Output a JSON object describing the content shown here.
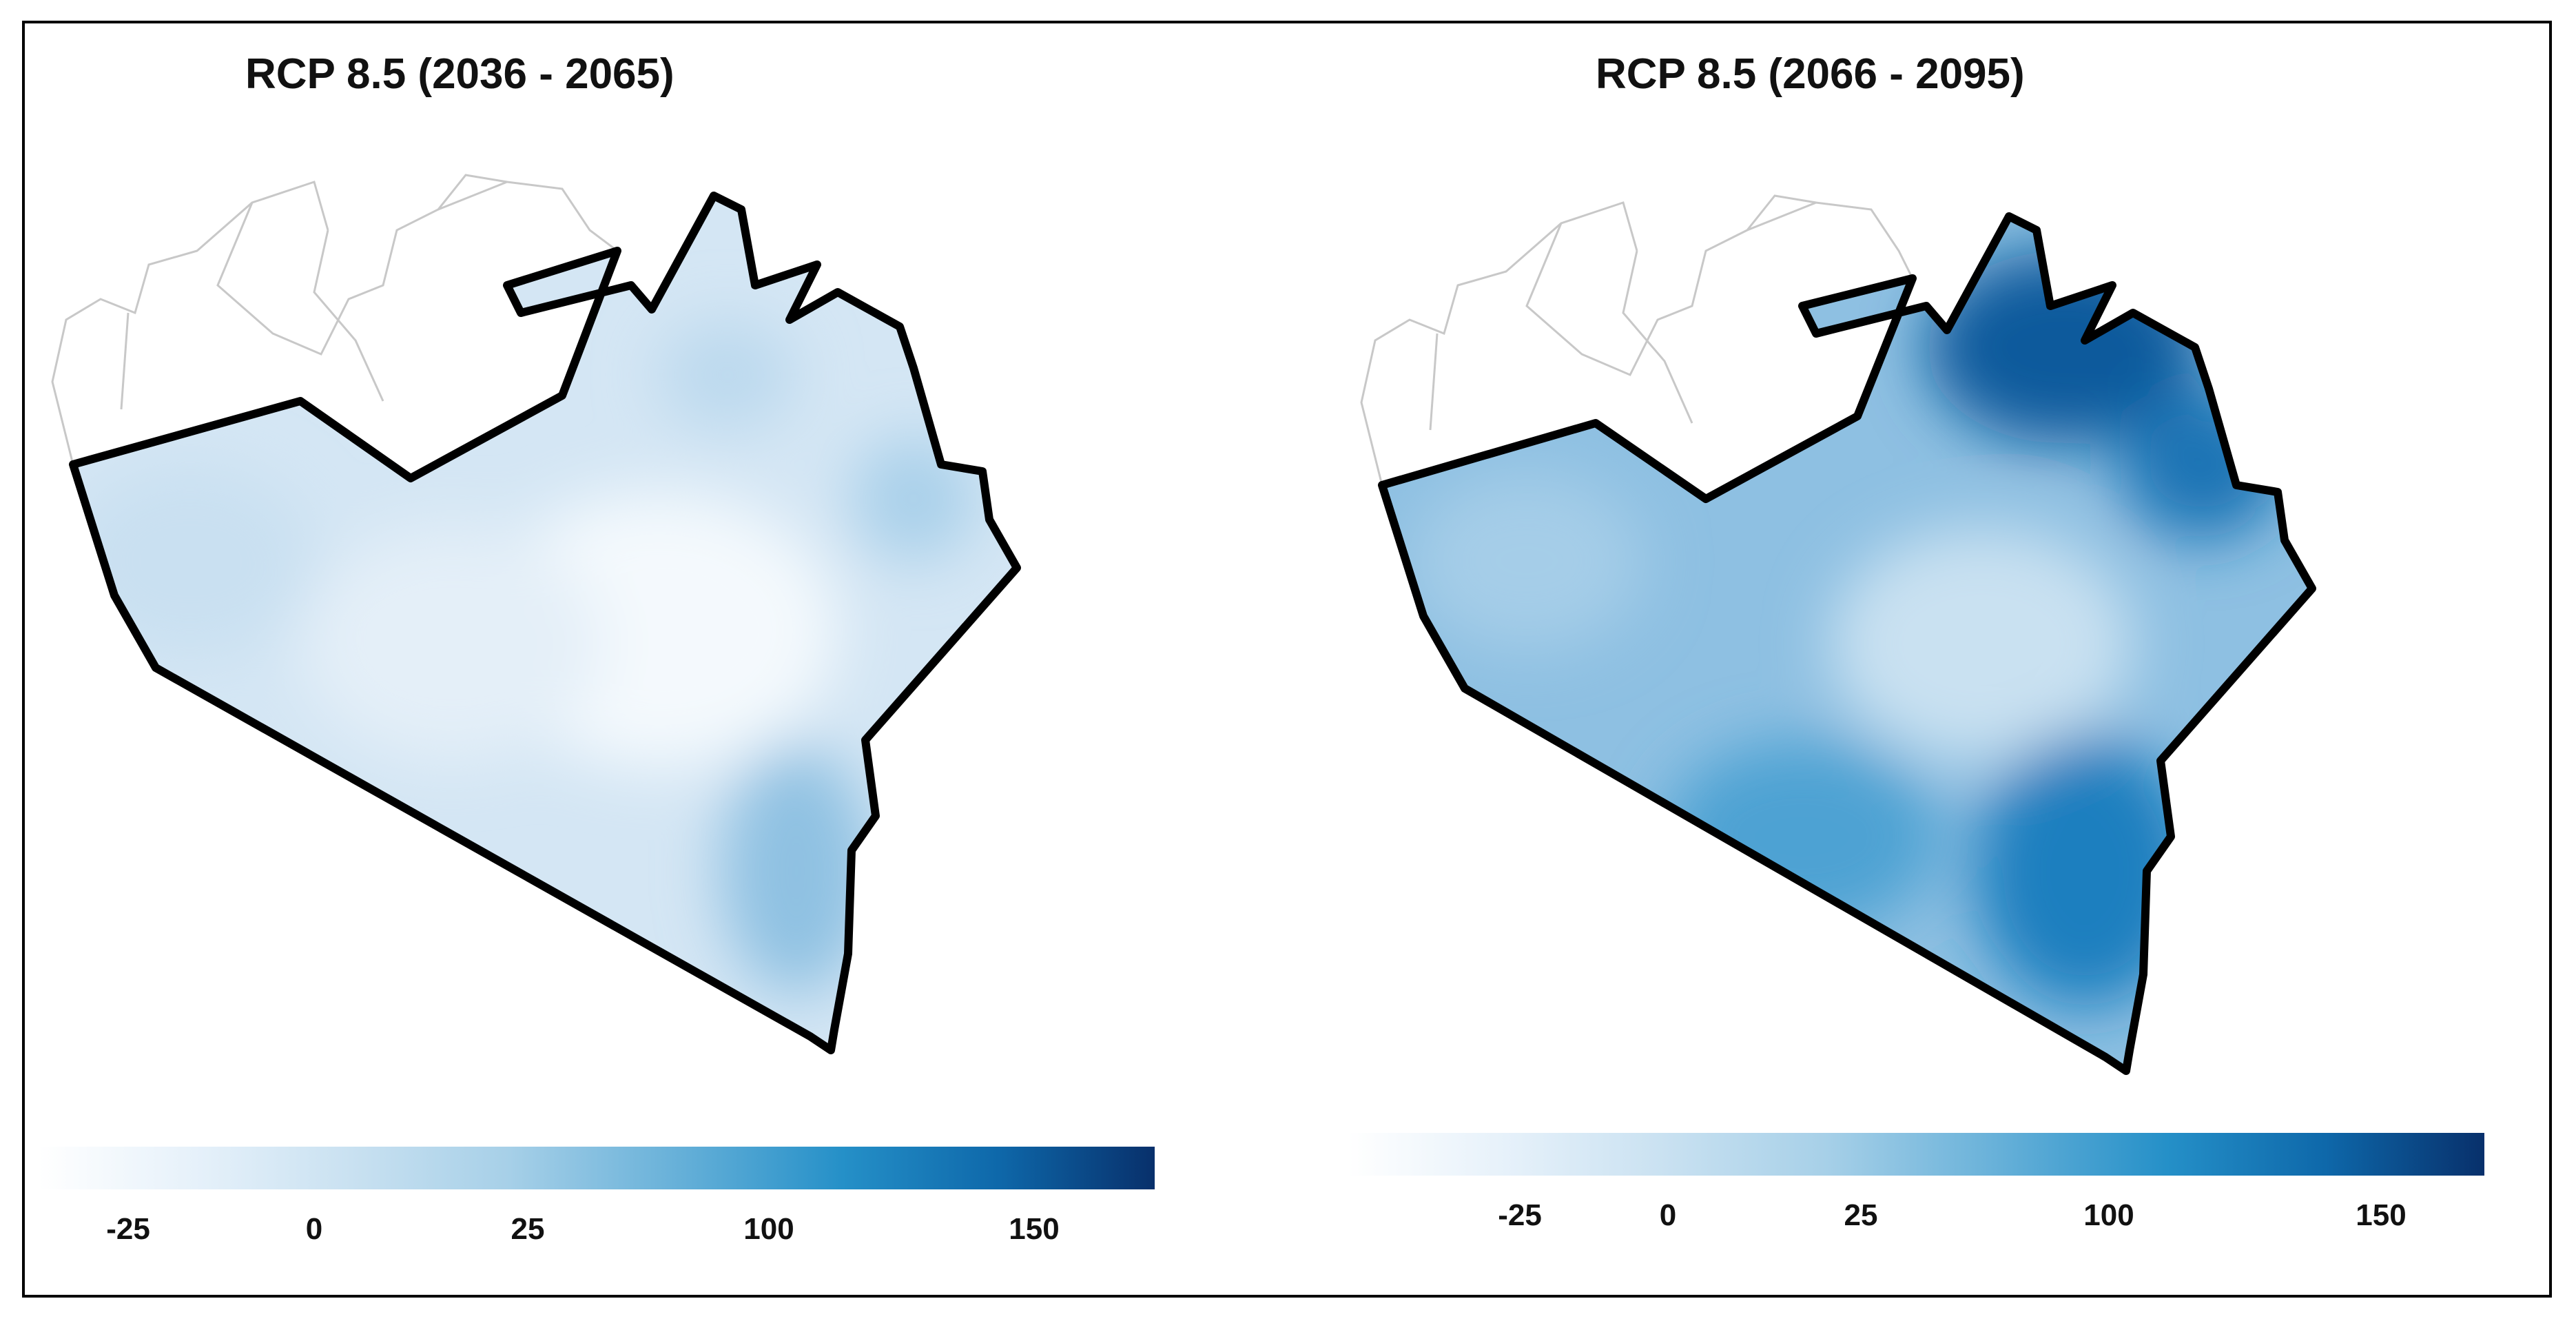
{
  "maps": [
    {
      "title": "RCP 8.5 (2036 - 2065)",
      "shade": "light",
      "legend": {
        "ticks": [
          "-25",
          "0",
          "25",
          "100",
          "150"
        ]
      }
    },
    {
      "title": "RCP 8.5 (2066 - 2095)",
      "shade": "dark",
      "legend": {
        "ticks": [
          "-25",
          "0",
          "25",
          "100",
          "150"
        ]
      }
    }
  ],
  "colors": {
    "scale_min": "#ffffff",
    "scale_mid": "#2590c8",
    "scale_max": "#08306b",
    "boundary": "#000000",
    "neighbor_outline": "#c8c8c8"
  }
}
